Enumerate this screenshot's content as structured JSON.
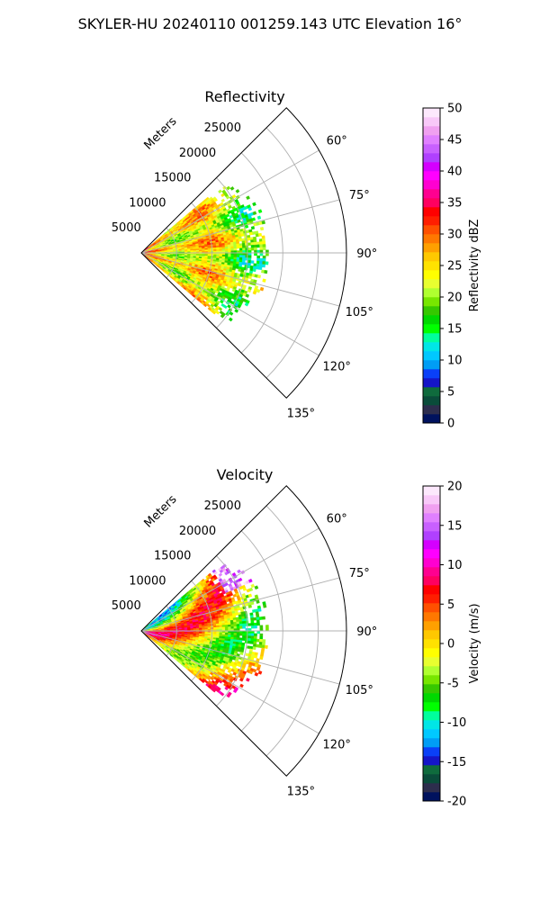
{
  "figure": {
    "suptitle": "SKYLER-HU  20240110  001259.143 UTC Elevation 16°"
  },
  "chart_data": [
    {
      "type": "heatmap",
      "projection": "polar-sector",
      "title": "Reflectivity",
      "radial_axis_label": "Meters",
      "radial_ticks": [
        "5000",
        "10000",
        "15000",
        "20000",
        "25000"
      ],
      "radial_tick_values": [
        5000,
        10000,
        15000,
        20000,
        25000
      ],
      "r_max": 29000,
      "angle_ticks": [
        "60°",
        "75°",
        "90°",
        "105°",
        "120°",
        "135°"
      ],
      "angle_tick_values": [
        60,
        75,
        90,
        105,
        120,
        135
      ],
      "angle_range_deg": [
        45,
        135
      ],
      "grid": true,
      "data_extent": {
        "angle_deg": [
          50,
          130
        ],
        "range_m": [
          0,
          18000
        ]
      },
      "colorbar": {
        "label": "Reflectivity dBZ",
        "ticks": [
          "0",
          "5",
          "10",
          "15",
          "20",
          "25",
          "30",
          "35",
          "40",
          "45",
          "50"
        ],
        "vmin": 0,
        "vmax": 50,
        "colors": [
          "#00125e",
          "#2d2d4d",
          "#0a4c3a",
          "#0f6b3d",
          "#1515c8",
          "#0a40f8",
          "#009df5",
          "#00c8ff",
          "#00e6e6",
          "#00ff9c",
          "#00ff00",
          "#00d800",
          "#36c800",
          "#78e600",
          "#b0ff30",
          "#e8ff30",
          "#ffff00",
          "#ffe200",
          "#ffc800",
          "#ffa000",
          "#ff7800",
          "#ff5000",
          "#ff1e00",
          "#ff0000",
          "#ff0060",
          "#ff0090",
          "#ff00d0",
          "#ff00ff",
          "#d400ff",
          "#b040ff",
          "#c860ff",
          "#e080ff",
          "#f0a0f0",
          "#f8c8f8",
          "#fce8fc"
        ]
      }
    },
    {
      "type": "heatmap",
      "projection": "polar-sector",
      "title": "Velocity",
      "radial_axis_label": "Meters",
      "radial_ticks": [
        "5000",
        "10000",
        "15000",
        "20000",
        "25000"
      ],
      "radial_tick_values": [
        5000,
        10000,
        15000,
        20000,
        25000
      ],
      "r_max": 29000,
      "angle_ticks": [
        "60°",
        "75°",
        "90°",
        "105°",
        "120°",
        "135°"
      ],
      "angle_tick_values": [
        60,
        75,
        90,
        105,
        120,
        135
      ],
      "angle_range_deg": [
        45,
        135
      ],
      "grid": true,
      "data_extent": {
        "angle_deg": [
          50,
          130
        ],
        "range_m": [
          0,
          18000
        ]
      },
      "colorbar": {
        "label": "Velocity (m/s)",
        "ticks": [
          "-20",
          "-15",
          "-10",
          "-5",
          "0",
          "5",
          "10",
          "15",
          "20"
        ],
        "vmin": -20,
        "vmax": 20,
        "colors": [
          "#00125e",
          "#2d2d4d",
          "#0a4c3a",
          "#0f6b3d",
          "#1515c8",
          "#0a40f8",
          "#009df5",
          "#00c8ff",
          "#00e6e6",
          "#00ff9c",
          "#00ff00",
          "#00d800",
          "#36c800",
          "#78e600",
          "#b0ff30",
          "#e8ff30",
          "#ffff00",
          "#ffe200",
          "#ffc800",
          "#ffa000",
          "#ff7800",
          "#ff5000",
          "#ff1e00",
          "#ff0000",
          "#ff0060",
          "#ff0090",
          "#ff00d0",
          "#ff00ff",
          "#d400ff",
          "#b040ff",
          "#c860ff",
          "#e080ff",
          "#f0a0f0",
          "#f8c8f8",
          "#fce8fc"
        ]
      }
    }
  ]
}
